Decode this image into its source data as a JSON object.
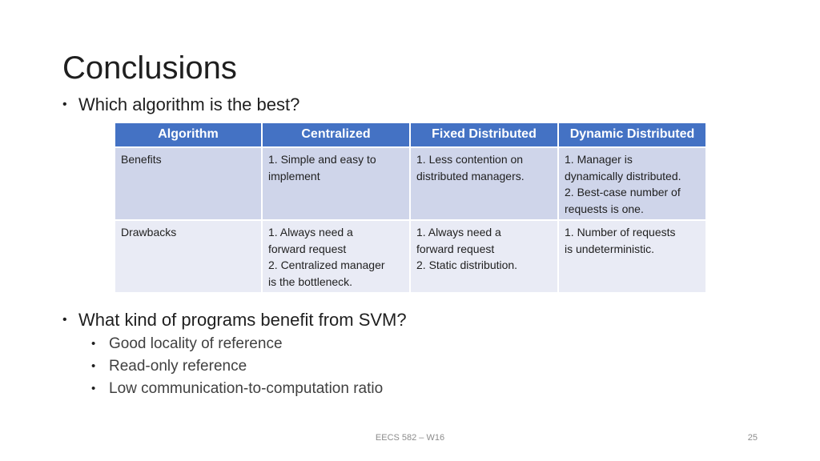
{
  "slide": {
    "title": "Conclusions",
    "bullet1": "Which algorithm is the best?",
    "bullet2": "What kind of programs benefit from SVM?",
    "sub_bullets": [
      "Good locality of reference",
      "Read-only reference",
      "Low communication-to-computation ratio"
    ]
  },
  "table": {
    "headers": [
      "Algorithm",
      "Centralized",
      "Fixed Distributed",
      "Dynamic Distributed"
    ],
    "rows": [
      {
        "label": "Benefits",
        "cells": [
          [
            "1. Simple and easy to",
            "implement"
          ],
          [
            "1. Less contention on",
            "distributed managers."
          ],
          [
            "1. Manager is",
            "dynamically distributed.",
            "2. Best-case number of",
            "requests is one."
          ]
        ]
      },
      {
        "label": "Drawbacks",
        "cells": [
          [
            "1. Always need a",
            "forward request",
            "2. Centralized manager",
            "is the bottleneck."
          ],
          [
            "1. Always need a",
            "forward request",
            "2. Static distribution."
          ],
          [
            "1. Number of requests",
            "is undeterministic."
          ]
        ]
      }
    ]
  },
  "footer": {
    "course": "EECS 582 – W16",
    "page_number": "25"
  },
  "colors": {
    "header_bg": "#4472c4",
    "row_benefits_bg": "#cfd5ea",
    "row_drawbacks_bg": "#e9ebf5"
  }
}
